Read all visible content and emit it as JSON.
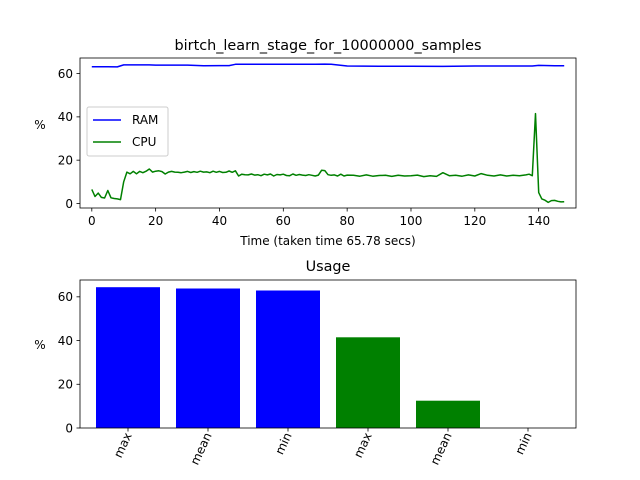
{
  "chart_data": [
    {
      "type": "line",
      "title": "birtch_learn_stage_for_10000000_samples",
      "xlabel": "Time (taken time 65.78 secs)",
      "ylabel": "%",
      "xlim": [
        -3.7,
        151.7
      ],
      "ylim": [
        -2.1,
        67.2
      ],
      "xticks": [
        0,
        20,
        40,
        60,
        80,
        100,
        120,
        140
      ],
      "yticks": [
        0,
        20,
        40,
        60
      ],
      "grid": false,
      "legend_position": "center-left",
      "series": [
        {
          "name": "RAM",
          "color": "#0000ff",
          "x": [
            0,
            5,
            8,
            10,
            12,
            15,
            18,
            20,
            25,
            30,
            35,
            40,
            43,
            45,
            50,
            55,
            60,
            65,
            70,
            73,
            75,
            80,
            90,
            100,
            110,
            120,
            130,
            138,
            140,
            145,
            148
          ],
          "y": [
            63.2,
            63.2,
            63.1,
            64.0,
            64.0,
            64.0,
            64.0,
            63.9,
            63.9,
            63.9,
            63.6,
            63.7,
            63.7,
            64.3,
            64.3,
            64.3,
            64.3,
            64.3,
            64.3,
            64.4,
            64.3,
            63.5,
            63.4,
            63.4,
            63.3,
            63.5,
            63.5,
            63.5,
            63.8,
            63.6,
            63.6
          ]
        },
        {
          "name": "CPU",
          "color": "#008000",
          "x": [
            0,
            1,
            2,
            3,
            4,
            5,
            6,
            7,
            8,
            9,
            10,
            11,
            12,
            13,
            14,
            15,
            16,
            17,
            18,
            19,
            20,
            21,
            22,
            23,
            24,
            25,
            26,
            27,
            28,
            29,
            30,
            31,
            32,
            33,
            34,
            35,
            36,
            37,
            38,
            39,
            40,
            41,
            42,
            43,
            44,
            45,
            46,
            47,
            48,
            49,
            50,
            51,
            52,
            53,
            54,
            55,
            56,
            57,
            58,
            59,
            60,
            61,
            62,
            63,
            64,
            65,
            66,
            67,
            68,
            69,
            70,
            71,
            72,
            73,
            74,
            75,
            76,
            77,
            78,
            79,
            80,
            82,
            84,
            86,
            88,
            90,
            92,
            94,
            96,
            98,
            100,
            102,
            104,
            106,
            108,
            110,
            112,
            114,
            116,
            118,
            120,
            122,
            124,
            126,
            128,
            130,
            132,
            134,
            136,
            137,
            138,
            139,
            140,
            141,
            142,
            143,
            144,
            145,
            146,
            147,
            148
          ],
          "y": [
            6.5,
            3.2,
            4.8,
            2.8,
            2.5,
            6.0,
            2.6,
            2.3,
            2.1,
            1.8,
            10.0,
            14.5,
            13.7,
            14.8,
            13.7,
            14.8,
            14.2,
            14.9,
            15.9,
            14.5,
            14.9,
            15.1,
            14.7,
            13.6,
            14.5,
            14.8,
            14.5,
            14.4,
            14.2,
            14.5,
            14.8,
            14.3,
            14.7,
            14.4,
            14.9,
            14.5,
            14.6,
            14.2,
            14.9,
            14.4,
            14.8,
            14.3,
            14.4,
            15.0,
            14.4,
            15.1,
            12.7,
            13.5,
            13.3,
            13.2,
            13.6,
            13.1,
            13.3,
            12.8,
            13.5,
            13.2,
            13.6,
            12.7,
            13.4,
            13.2,
            13.5,
            12.9,
            12.8,
            13.6,
            13.0,
            13.4,
            13.1,
            12.9,
            13.3,
            13.0,
            12.7,
            13.1,
            15.3,
            15.2,
            13.3,
            13.0,
            13.2,
            12.7,
            13.5,
            12.7,
            13.1,
            13.0,
            12.6,
            13.2,
            12.6,
            12.9,
            13.0,
            12.5,
            13.0,
            12.7,
            12.8,
            13.1,
            12.4,
            12.8,
            12.5,
            14.2,
            12.8,
            13.0,
            12.6,
            13.2,
            12.7,
            13.8,
            13.0,
            12.7,
            13.2,
            12.7,
            13.0,
            12.8,
            13.2,
            13.5,
            12.8,
            41.5,
            5.0,
            2.1,
            1.5,
            0.5,
            1.3,
            1.4,
            1.0,
            0.7,
            0.8
          ]
        }
      ]
    },
    {
      "type": "bar",
      "title": "Usage",
      "xlabel": "",
      "ylabel": "%",
      "ylim": [
        0,
        67.7
      ],
      "yticks": [
        0,
        20,
        40,
        60
      ],
      "grid": false,
      "categories": [
        "max",
        "mean",
        "min",
        "max",
        "mean",
        "min"
      ],
      "values": [
        64.4,
        63.8,
        62.9,
        41.5,
        12.5,
        0.0
      ],
      "colors": [
        "#0000ff",
        "#0000ff",
        "#0000ff",
        "#008000",
        "#008000",
        "#008000"
      ]
    }
  ]
}
